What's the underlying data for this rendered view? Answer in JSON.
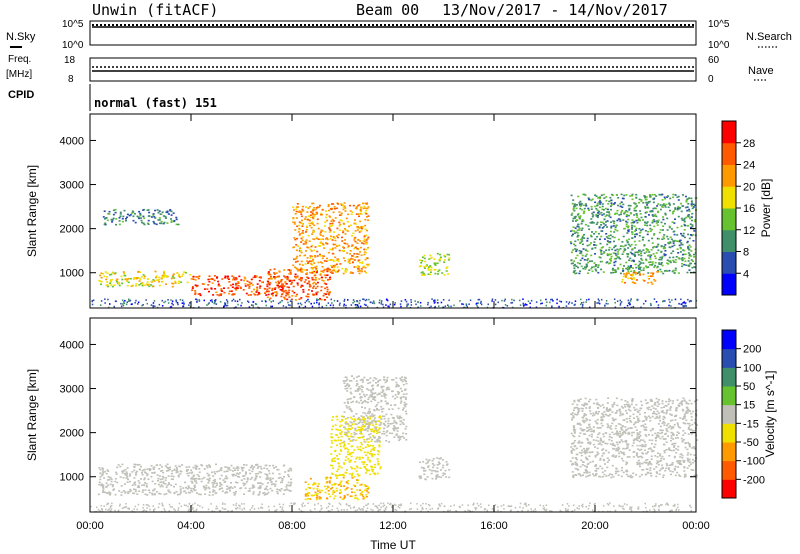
{
  "header": {
    "radar": "Unwin (fitACF)",
    "beam": "Beam 00",
    "date_range": "13/Nov/2017 - 14/Nov/2017"
  },
  "strip_noise": {
    "left_label": "N.Sky",
    "right_label": "N.Search",
    "left_ticks": [
      "10^5",
      "10^0"
    ],
    "right_ticks": [
      "10^5",
      "10^0"
    ]
  },
  "strip_freq": {
    "left_label_1": "Freq.",
    "left_label_2": "[MHz]",
    "right_label": "Nave",
    "left_ticks": [
      "18",
      "8"
    ],
    "right_ticks": [
      "60",
      "0"
    ]
  },
  "strip_cpid": {
    "left_label": "CPID",
    "value": "normal (fast) 151"
  },
  "colors": {
    "power_scale": [
      "#0000ff",
      "#2a4eb0",
      "#3f8f6a",
      "#66c32f",
      "#f0e000",
      "#ff9900",
      "#ff5a00",
      "#ff0000"
    ],
    "velocity_scale": [
      "#ff0000",
      "#ff5a00",
      "#ff9900",
      "#f0e000",
      "#c0c0b8",
      "#66c32f",
      "#3f8f6a",
      "#2a4eb0",
      "#0000ff"
    ]
  },
  "chart_data": [
    {
      "type": "heatmap",
      "title": "",
      "xlabel": "Time UT",
      "ylabel": "Slant Range [km]",
      "ylim": [
        200,
        4600
      ],
      "xlim": [
        "00:00",
        "24:00"
      ],
      "yticks": [
        "1000",
        "2000",
        "3000",
        "4000"
      ],
      "xticks": [
        "00:00",
        "04:00",
        "08:00",
        "12:00",
        "16:00",
        "20:00",
        "00:00"
      ],
      "colorbar": {
        "label": "Power [dB]",
        "range": [
          0,
          32
        ],
        "ticks": [
          "28",
          "24",
          "20",
          "16",
          "12",
          "8",
          "4"
        ]
      },
      "regions": [
        {
          "t": [
            0.3,
            4.0
          ],
          "r": [
            700,
            1050
          ],
          "value": 18
        },
        {
          "t": [
            0.5,
            3.5
          ],
          "r": [
            2100,
            2450
          ],
          "value": 9
        },
        {
          "t": [
            4.0,
            8.0
          ],
          "r": [
            500,
            950
          ],
          "value": 27
        },
        {
          "t": [
            7.0,
            9.5
          ],
          "r": [
            400,
            1100
          ],
          "value": 26
        },
        {
          "t": [
            8.0,
            11.0
          ],
          "r": [
            1000,
            2600
          ],
          "value": 22
        },
        {
          "t": [
            13.0,
            14.2
          ],
          "r": [
            950,
            1450
          ],
          "value": 16
        },
        {
          "t": [
            19.0,
            24.0
          ],
          "r": [
            1000,
            2800
          ],
          "value": 11
        },
        {
          "t": [
            21.0,
            22.5
          ],
          "r": [
            750,
            1050
          ],
          "value": 22
        }
      ]
    },
    {
      "type": "heatmap",
      "title": "",
      "xlabel": "Time UT",
      "ylabel": "Slant Range [km]",
      "ylim": [
        200,
        4600
      ],
      "xlim": [
        "00:00",
        "24:00"
      ],
      "yticks": [
        "1000",
        "2000",
        "3000",
        "4000"
      ],
      "xticks": [
        "00:00",
        "04:00",
        "08:00",
        "12:00",
        "16:00",
        "20:00",
        "00:00"
      ],
      "colorbar": {
        "label": "Velocity [m s^-1]",
        "range": [
          -250,
          250
        ],
        "ticks": [
          "200",
          "100",
          "50",
          "15",
          "-15",
          "-50",
          "-100",
          "-200"
        ]
      },
      "regions": [
        {
          "t": [
            0.3,
            8.0
          ],
          "r": [
            600,
            1300
          ],
          "value": 0
        },
        {
          "t": [
            8.5,
            11.0
          ],
          "r": [
            500,
            1000
          ],
          "value": -80
        },
        {
          "t": [
            9.5,
            11.5
          ],
          "r": [
            1000,
            2400
          ],
          "value": -60
        },
        {
          "t": [
            10.0,
            12.5
          ],
          "r": [
            1800,
            3300
          ],
          "value": 0
        },
        {
          "t": [
            13.0,
            14.2
          ],
          "r": [
            950,
            1450
          ],
          "value": 0
        },
        {
          "t": [
            19.0,
            24.0
          ],
          "r": [
            1000,
            2800
          ],
          "value": 0
        }
      ]
    }
  ]
}
